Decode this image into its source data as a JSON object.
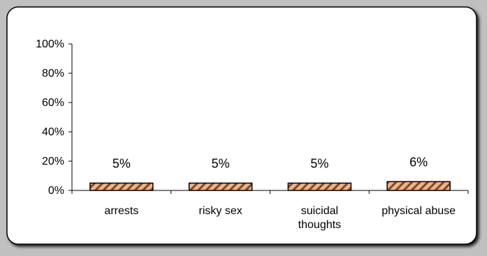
{
  "chart_data": {
    "type": "bar",
    "categories": [
      "arrests",
      "risky sex",
      "suicidal\nthoughts",
      "physical abuse"
    ],
    "values": [
      5,
      5,
      5,
      6
    ],
    "data_labels": [
      "5%",
      "5%",
      "5%",
      "6%"
    ],
    "title": "",
    "xlabel": "",
    "ylabel": "",
    "ylim": [
      0,
      100
    ],
    "y_ticks": [
      "0%",
      "20%",
      "40%",
      "60%",
      "80%",
      "100%"
    ],
    "grid": false,
    "legend": "none",
    "bar_color": "#f4b183",
    "bar_pattern": "diagonal-hatch",
    "bar_edge_color": "#000000",
    "frame_color": "#ffffff",
    "page_background": "#c0c0c0"
  }
}
